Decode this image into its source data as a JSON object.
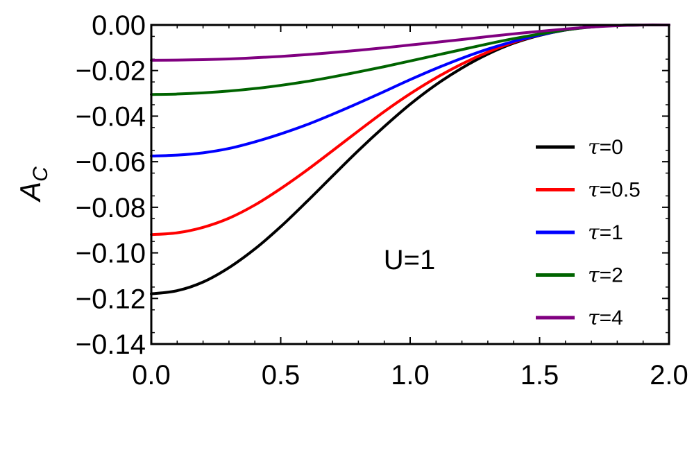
{
  "chart_data": {
    "type": "line",
    "title": "",
    "xlabel": "",
    "ylabel_main": "A",
    "ylabel_sub": "C",
    "xlim": [
      0,
      2
    ],
    "ylim": [
      -0.14,
      0
    ],
    "xticks": [
      "0.0",
      "0.5",
      "1.0",
      "1.5",
      "2.0"
    ],
    "yticks": [
      "0.00",
      "−0.02",
      "−0.04",
      "−0.06",
      "−0.08",
      "−0.10",
      "−0.12",
      "−0.14"
    ],
    "annotation": "U=1",
    "legend_position": "right",
    "x": [
      0.0,
      0.1,
      0.2,
      0.3,
      0.4,
      0.5,
      0.6,
      0.7,
      0.8,
      0.9,
      1.0,
      1.1,
      1.2,
      1.3,
      1.4,
      1.5,
      1.6,
      1.7,
      1.8,
      1.9,
      2.0
    ],
    "series": [
      {
        "name": "τ=0",
        "tau_label": "τ",
        "value_label": "=0",
        "color": "#000000",
        "values": [
          -0.118,
          -0.1166,
          -0.1128,
          -0.1065,
          -0.0983,
          -0.0885,
          -0.0776,
          -0.0663,
          -0.0551,
          -0.0446,
          -0.0348,
          -0.0262,
          -0.0189,
          -0.0128,
          -0.008,
          -0.0046,
          -0.0022,
          -0.0008,
          -0.0002,
          0.0,
          0.0
        ]
      },
      {
        "name": "τ=0.5",
        "tau_label": "τ",
        "value_label": "=0.5",
        "color": "#ff0000",
        "values": [
          -0.092,
          -0.0912,
          -0.0888,
          -0.0848,
          -0.079,
          -0.0718,
          -0.0638,
          -0.0552,
          -0.0465,
          -0.038,
          -0.0302,
          -0.0232,
          -0.0171,
          -0.0119,
          -0.0076,
          -0.0044,
          -0.0022,
          -0.0008,
          -0.0002,
          0.0,
          0.0
        ]
      },
      {
        "name": "τ=1",
        "tau_label": "τ",
        "value_label": "=1",
        "color": "#0000ff",
        "values": [
          -0.0575,
          -0.0571,
          -0.0561,
          -0.0542,
          -0.0513,
          -0.0478,
          -0.0438,
          -0.0392,
          -0.0343,
          -0.0292,
          -0.024,
          -0.0191,
          -0.0146,
          -0.0106,
          -0.0072,
          -0.0044,
          -0.0022,
          -0.0008,
          -0.0002,
          0.0,
          0.0
        ]
      },
      {
        "name": "τ=2",
        "tau_label": "τ",
        "value_label": "=2",
        "color": "#006400",
        "values": [
          -0.0305,
          -0.0303,
          -0.0298,
          -0.029,
          -0.0279,
          -0.0265,
          -0.0248,
          -0.0228,
          -0.0206,
          -0.0183,
          -0.0158,
          -0.0133,
          -0.0108,
          -0.0083,
          -0.006,
          -0.004,
          -0.0022,
          -0.0009,
          -0.0002,
          0.0,
          0.0
        ]
      },
      {
        "name": "τ=4",
        "tau_label": "τ",
        "value_label": "=4",
        "color": "#800080",
        "values": [
          -0.0155,
          -0.0154,
          -0.0152,
          -0.0149,
          -0.0144,
          -0.0138,
          -0.013,
          -0.0121,
          -0.0111,
          -0.01,
          -0.0088,
          -0.0076,
          -0.0064,
          -0.0051,
          -0.0039,
          -0.0028,
          -0.0018,
          -0.0009,
          -0.0003,
          0.0,
          0.0
        ]
      }
    ]
  }
}
